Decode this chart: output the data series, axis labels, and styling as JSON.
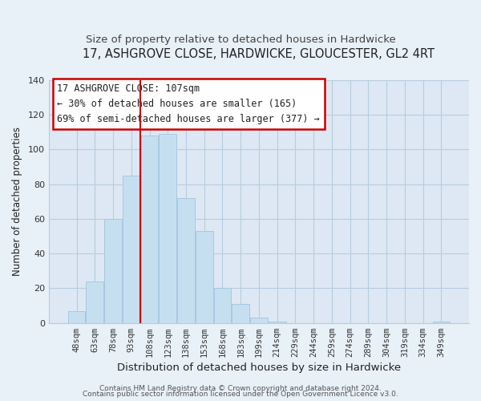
{
  "title": "17, ASHGROVE CLOSE, HARDWICKE, GLOUCESTER, GL2 4RT",
  "subtitle": "Size of property relative to detached houses in Hardwicke",
  "xlabel": "Distribution of detached houses by size in Hardwicke",
  "ylabel": "Number of detached properties",
  "bar_labels": [
    "48sqm",
    "63sqm",
    "78sqm",
    "93sqm",
    "108sqm",
    "123sqm",
    "138sqm",
    "153sqm",
    "168sqm",
    "183sqm",
    "199sqm",
    "214sqm",
    "229sqm",
    "244sqm",
    "259sqm",
    "274sqm",
    "289sqm",
    "304sqm",
    "319sqm",
    "334sqm",
    "349sqm"
  ],
  "bar_values": [
    7,
    24,
    60,
    85,
    108,
    109,
    72,
    53,
    20,
    11,
    3,
    1,
    0,
    0,
    0,
    0,
    0,
    0,
    0,
    0,
    1
  ],
  "bar_color": "#c6dff0",
  "bar_edge_color": "#a8c8e0",
  "vline_index": 4,
  "vline_color": "#cc0000",
  "ylim": [
    0,
    140
  ],
  "yticks": [
    0,
    20,
    40,
    60,
    80,
    100,
    120,
    140
  ],
  "annotation_title": "17 ASHGROVE CLOSE: 107sqm",
  "annotation_line1": "← 30% of detached houses are smaller (165)",
  "annotation_line2": "69% of semi-detached houses are larger (377) →",
  "footer1": "Contains HM Land Registry data © Crown copyright and database right 2024.",
  "footer2": "Contains public sector information licensed under the Open Government Licence v3.0.",
  "background_color": "#e8f0f8",
  "plot_bg_color": "#dde8f4",
  "grid_color": "#b8ccde",
  "title_fontsize": 10.5,
  "subtitle_fontsize": 9.5,
  "xlabel_fontsize": 9.5,
  "ylabel_fontsize": 8.5,
  "tick_fontsize": 7.5,
  "footer_fontsize": 6.5,
  "annot_fontsize": 8.5
}
